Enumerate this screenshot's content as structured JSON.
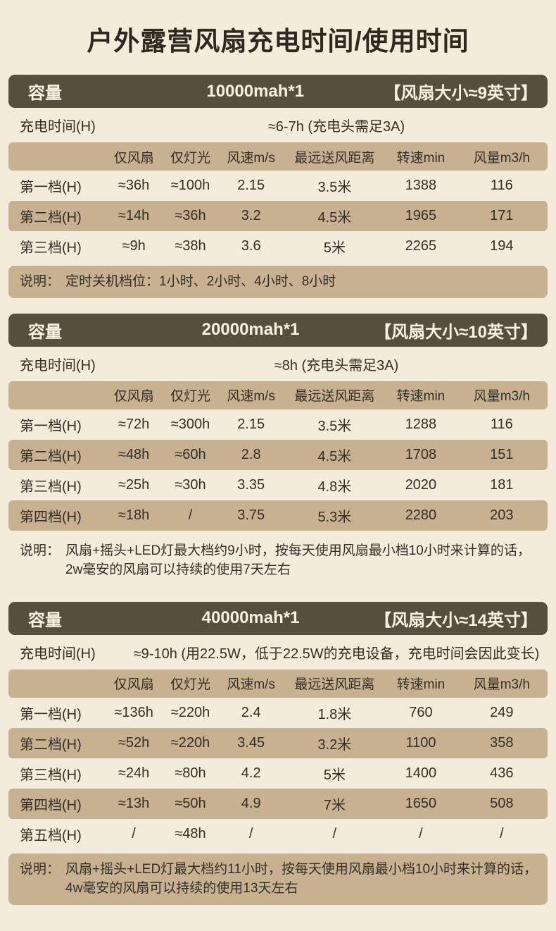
{
  "title": "户外露营风扇充电时间/使用时间",
  "colors": {
    "background": "#f3ecdb",
    "header_bg": "#564f3d",
    "header_text": "#f6f1e2",
    "highlight": "#c8b191",
    "title_text": "#2e2920",
    "body_text": "#332f26"
  },
  "sections": [
    {
      "capacity_label": "容量",
      "capacity_value": "10000mah*1",
      "fan_size": "【风扇大小≈9英寸】",
      "charge_label": "充电时间(H)",
      "charge_value": "≈6-7h (充电头需足3A)",
      "columns": [
        "",
        "仅风扇",
        "仅灯光",
        "风速m/s",
        "最远送风距离",
        "转速min",
        "风量m3/h"
      ],
      "rows": [
        [
          "第一档(H)",
          "≈36h",
          "≈100h",
          "2.15",
          "3.5米",
          "1388",
          "116"
        ],
        [
          "第二档(H)",
          "≈14h",
          "≈36h",
          "3.2",
          "4.5米",
          "1965",
          "171"
        ],
        [
          "第三档(H)",
          "≈9h",
          "≈38h",
          "3.6",
          "5米",
          "2265",
          "194"
        ]
      ],
      "note_label": "说明：",
      "note_text": "定时关机档位：1小时、2小时、4小时、8小时",
      "note_highlight": true
    },
    {
      "capacity_label": "容量",
      "capacity_value": "20000mah*1",
      "fan_size": "【风扇大小≈10英寸】",
      "charge_label": "充电时间(H)",
      "charge_value": "≈8h (充电头需足3A)",
      "columns": [
        "",
        "仅风扇",
        "仅灯光",
        "风速m/s",
        "最远送风距离",
        "转速min",
        "风量m3/h"
      ],
      "rows": [
        [
          "第一档(H)",
          "≈72h",
          "≈300h",
          "2.15",
          "3.5米",
          "1288",
          "116"
        ],
        [
          "第二档(H)",
          "≈48h",
          "≈60h",
          "2.8",
          "4.5米",
          "1708",
          "151"
        ],
        [
          "第三档(H)",
          "≈25h",
          "≈30h",
          "3.35",
          "4.8米",
          "2020",
          "181"
        ],
        [
          "第四档(H)",
          "≈18h",
          "/",
          "3.75",
          "5.3米",
          "2280",
          "203"
        ]
      ],
      "note_label": "说明：",
      "note_text": "风扇+摇头+LED灯最大档约9小时，按每天使用风扇最小档10小时来计算的话，2w毫安的风扇可以持续的使用7天左右",
      "note_highlight": false
    },
    {
      "capacity_label": "容量",
      "capacity_value": "40000mah*1",
      "fan_size": "【风扇大小≈14英寸】",
      "charge_label": "充电时间(H)",
      "charge_value": "≈9-10h (用22.5W，低于22.5W的充电设备，充电时间会因此变长)",
      "columns": [
        "",
        "仅风扇",
        "仅灯光",
        "风速m/s",
        "最远送风距离",
        "转速min",
        "风量m3/h"
      ],
      "rows": [
        [
          "第一档(H)",
          "≈136h",
          "≈220h",
          "2.4",
          "1.8米",
          "760",
          "249"
        ],
        [
          "第二档(H)",
          "≈52h",
          "≈220h",
          "3.45",
          "3.2米",
          "1100",
          "358"
        ],
        [
          "第三档(H)",
          "≈24h",
          "≈80h",
          "4.2",
          "5米",
          "1400",
          "436"
        ],
        [
          "第四档(H)",
          "≈13h",
          "≈50h",
          "4.9",
          "7米",
          "1650",
          "508"
        ],
        [
          "第五档(H)",
          "/",
          "≈48h",
          "/",
          "/",
          "/",
          "/"
        ]
      ],
      "note_label": "说明：",
      "note_text": "风扇+摇头+LED灯最大档约11小时，按每天使用风扇最小档10小时来计算的话，4w毫安的风扇可以持续的使用13天左右",
      "note_highlight": true
    }
  ]
}
